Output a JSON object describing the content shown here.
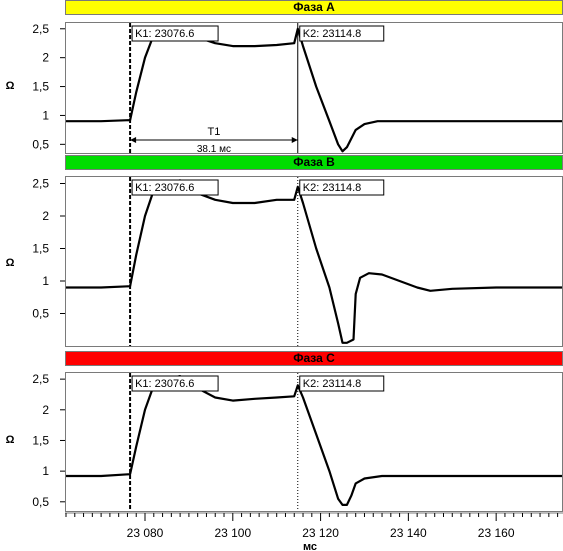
{
  "chart_data": [
    {
      "type": "line",
      "title": "Фаза А",
      "title_color": "#ffff00",
      "ylabel": "Ω",
      "ylim": [
        0.35,
        2.6
      ],
      "yticks": [
        0.5,
        1,
        1.5,
        2,
        2.5
      ],
      "ytick_labels": [
        "0,5",
        "1",
        "1,5",
        "2",
        "2,5"
      ],
      "cursors": [
        {
          "label": "K1: 23076.6",
          "x": 23076.6,
          "style": "dashed"
        },
        {
          "label": "K2: 23114.8",
          "x": 23114.8,
          "style": "solid"
        }
      ],
      "interval": {
        "name": "T1",
        "value": "38.1 мс"
      },
      "series": [
        {
          "values": [
            [
              23062,
              0.9
            ],
            [
              23070,
              0.9
            ],
            [
              23076.6,
              0.92
            ],
            [
              23078,
              1.4
            ],
            [
              23080,
              2.0
            ],
            [
              23082,
              2.4
            ],
            [
              23085,
              2.5
            ],
            [
              23088,
              2.5
            ],
            [
              23092,
              2.35
            ],
            [
              23096,
              2.25
            ],
            [
              23100,
              2.2
            ],
            [
              23105,
              2.2
            ],
            [
              23110,
              2.22
            ],
            [
              23114,
              2.25
            ],
            [
              23114.8,
              2.5
            ],
            [
              23116,
              2.2
            ],
            [
              23119,
              1.5
            ],
            [
              23122,
              0.9
            ],
            [
              23124,
              0.5
            ],
            [
              23125,
              0.38
            ],
            [
              23126,
              0.45
            ],
            [
              23128,
              0.75
            ],
            [
              23130,
              0.85
            ],
            [
              23133,
              0.9
            ],
            [
              23140,
              0.9
            ],
            [
              23150,
              0.9
            ],
            [
              23160,
              0.9
            ],
            [
              23175,
              0.9
            ]
          ]
        }
      ]
    },
    {
      "type": "line",
      "title": "Фаза В",
      "title_color": "#00dd00",
      "ylabel": "Ω",
      "ylim": [
        0.0,
        2.6
      ],
      "yticks": [
        0.5,
        1,
        1.5,
        2,
        2.5
      ],
      "ytick_labels": [
        "0,5",
        "1",
        "1,5",
        "2",
        "2,5"
      ],
      "cursors": [
        {
          "label": "K1: 23076.6",
          "x": 23076.6,
          "style": "dashed"
        },
        {
          "label": "K2: 23114.8",
          "x": 23114.8,
          "style": "dotted"
        }
      ],
      "series": [
        {
          "values": [
            [
              23062,
              0.9
            ],
            [
              23070,
              0.9
            ],
            [
              23076.6,
              0.92
            ],
            [
              23078,
              1.4
            ],
            [
              23080,
              2.0
            ],
            [
              23082,
              2.4
            ],
            [
              23085,
              2.5
            ],
            [
              23088,
              2.55
            ],
            [
              23092,
              2.35
            ],
            [
              23096,
              2.25
            ],
            [
              23100,
              2.2
            ],
            [
              23105,
              2.2
            ],
            [
              23110,
              2.25
            ],
            [
              23114,
              2.25
            ],
            [
              23114.8,
              2.45
            ],
            [
              23116,
              2.2
            ],
            [
              23119,
              1.5
            ],
            [
              23122,
              0.9
            ],
            [
              23124,
              0.35
            ],
            [
              23125,
              0.05
            ],
            [
              23126,
              0.05
            ],
            [
              23127.5,
              0.1
            ],
            [
              23128,
              0.8
            ],
            [
              23129,
              1.05
            ],
            [
              23131,
              1.12
            ],
            [
              23134,
              1.1
            ],
            [
              23138,
              1.0
            ],
            [
              23142,
              0.9
            ],
            [
              23145,
              0.85
            ],
            [
              23150,
              0.88
            ],
            [
              23160,
              0.9
            ],
            [
              23175,
              0.9
            ]
          ]
        }
      ]
    },
    {
      "type": "line",
      "title": "Фаза С",
      "title_color": "#ff0000",
      "ylabel": "Ω",
      "ylim": [
        0.35,
        2.6
      ],
      "yticks": [
        0.5,
        1,
        1.5,
        2,
        2.5
      ],
      "ytick_labels": [
        "0,5",
        "1",
        "1,5",
        "2",
        "2,5"
      ],
      "xlabel": "мс",
      "xlim": [
        23062,
        23175
      ],
      "xticks": [
        23080,
        23100,
        23120,
        23140,
        23160
      ],
      "xtick_labels": [
        "23 080",
        "23 100",
        "23 120",
        "23 140",
        "23 160"
      ],
      "cursors": [
        {
          "label": "K1: 23076.6",
          "x": 23076.6,
          "style": "dashed"
        },
        {
          "label": "K2: 23114.8",
          "x": 23114.8,
          "style": "dotted"
        }
      ],
      "series": [
        {
          "values": [
            [
              23062,
              0.92
            ],
            [
              23070,
              0.92
            ],
            [
              23076.6,
              0.95
            ],
            [
              23078,
              1.4
            ],
            [
              23080,
              2.0
            ],
            [
              23082,
              2.4
            ],
            [
              23085,
              2.5
            ],
            [
              23088,
              2.55
            ],
            [
              23092,
              2.35
            ],
            [
              23096,
              2.2
            ],
            [
              23100,
              2.15
            ],
            [
              23105,
              2.18
            ],
            [
              23110,
              2.2
            ],
            [
              23114,
              2.22
            ],
            [
              23114.8,
              2.4
            ],
            [
              23116,
              2.2
            ],
            [
              23119,
              1.6
            ],
            [
              23122,
              1.0
            ],
            [
              23124,
              0.55
            ],
            [
              23125,
              0.45
            ],
            [
              23126,
              0.45
            ],
            [
              23127,
              0.6
            ],
            [
              23128,
              0.8
            ],
            [
              23130,
              0.88
            ],
            [
              23134,
              0.92
            ],
            [
              23140,
              0.92
            ],
            [
              23150,
              0.92
            ],
            [
              23160,
              0.92
            ],
            [
              23175,
              0.92
            ]
          ]
        }
      ]
    }
  ]
}
